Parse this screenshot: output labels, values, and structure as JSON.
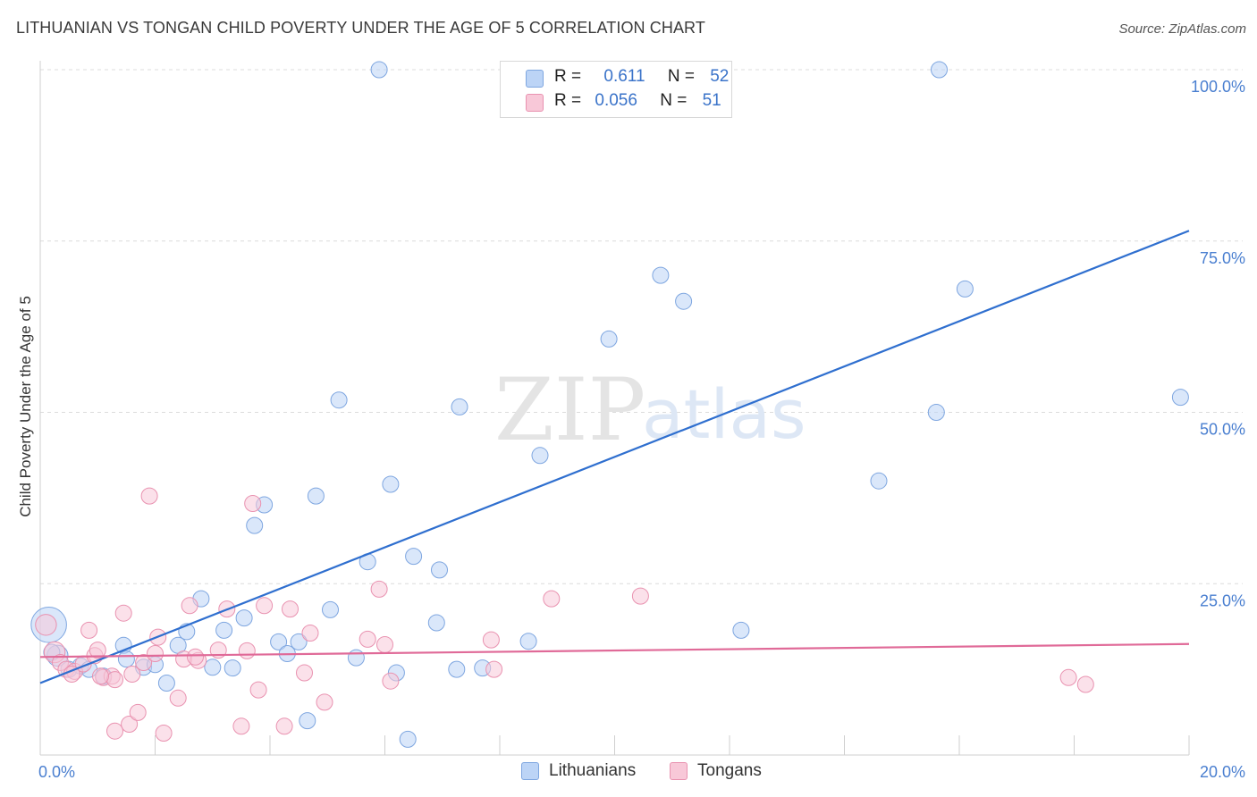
{
  "title": "LITHUANIAN VS TONGAN CHILD POVERTY UNDER THE AGE OF 5 CORRELATION CHART",
  "source": "Source: ZipAtlas.com",
  "watermark": {
    "zip": "ZIP",
    "atlas": "atlas"
  },
  "legend": {
    "rows": [
      {
        "r_label": "R =",
        "r_value": "0.611",
        "n_label": "N =",
        "n_value": "52",
        "color": "#bcd4f6",
        "border": "#7ea6e0"
      },
      {
        "r_label": "R =",
        "r_value": "0.056",
        "n_label": "N =",
        "n_value": "51",
        "color": "#f8c8d8",
        "border": "#e992b0"
      }
    ]
  },
  "bottom_legend": [
    {
      "label": "Lithuanians",
      "color": "#bcd4f6",
      "border": "#7ea6e0"
    },
    {
      "label": "Tongans",
      "color": "#f8c8d8",
      "border": "#e992b0"
    }
  ],
  "chart_data": {
    "type": "scatter",
    "ylabel": "Child Poverty Under the Age of 5",
    "xlim": [
      0,
      20
    ],
    "ylim": [
      0,
      100
    ],
    "x_tick_labels": [
      "0.0%",
      "20.0%"
    ],
    "y_ticks": [
      25,
      50,
      75,
      100
    ],
    "y_tick_labels": [
      "25.0%",
      "50.0%",
      "75.0%",
      "100.0%"
    ],
    "grid": true,
    "series": [
      {
        "name": "Lithuanians",
        "fill": "rgba(188,212,246,0.55)",
        "stroke": "#7ea6e0",
        "line_color": "#2f6fcf",
        "trend": [
          [
            0,
            10.5
          ],
          [
            20,
            76.5
          ]
        ],
        "points": [
          [
            0.15,
            19,
            2.2
          ],
          [
            0.3,
            14.5,
            1.3
          ],
          [
            0.5,
            12.5,
            1
          ],
          [
            0.7,
            13,
            1
          ],
          [
            0.85,
            12.5,
            1
          ],
          [
            1.1,
            11.5,
            1
          ],
          [
            1.45,
            16,
            1
          ],
          [
            1.5,
            14,
            1
          ],
          [
            1.8,
            12.8,
            1
          ],
          [
            2.0,
            13.2,
            1
          ],
          [
            2.2,
            10.5,
            1
          ],
          [
            2.4,
            16,
            1
          ],
          [
            2.55,
            18,
            1
          ],
          [
            2.8,
            22.8,
            1
          ],
          [
            3.0,
            12.8,
            1
          ],
          [
            3.2,
            18.2,
            1
          ],
          [
            3.35,
            12.7,
            1
          ],
          [
            3.55,
            20,
            1
          ],
          [
            3.73,
            33.5,
            1
          ],
          [
            3.9,
            36.5,
            1
          ],
          [
            4.15,
            16.5,
            1
          ],
          [
            4.3,
            14.8,
            1
          ],
          [
            4.5,
            16.5,
            1
          ],
          [
            4.65,
            5,
            1
          ],
          [
            4.8,
            37.8,
            1
          ],
          [
            5.05,
            21.2,
            1
          ],
          [
            5.2,
            51.8,
            1
          ],
          [
            5.5,
            14.2,
            1
          ],
          [
            5.7,
            28.2,
            1
          ],
          [
            5.9,
            100,
            1
          ],
          [
            6.1,
            39.5,
            1
          ],
          [
            6.2,
            12,
            1
          ],
          [
            6.4,
            2.3,
            1
          ],
          [
            6.5,
            29,
            1
          ],
          [
            6.9,
            19.3,
            1
          ],
          [
            6.95,
            27,
            1
          ],
          [
            7.3,
            50.8,
            1
          ],
          [
            7.25,
            12.5,
            1
          ],
          [
            7.7,
            12.7,
            1
          ],
          [
            8.2,
            100,
            1
          ],
          [
            8.5,
            16.6,
            1
          ],
          [
            8.7,
            43.7,
            1
          ],
          [
            9.9,
            60.7,
            1
          ],
          [
            10.8,
            70,
            1
          ],
          [
            11.2,
            66.2,
            1
          ],
          [
            12.2,
            18.2,
            1
          ],
          [
            14.6,
            40,
            1
          ],
          [
            15.6,
            50,
            1
          ],
          [
            15.65,
            100,
            1
          ],
          [
            16.1,
            68,
            1
          ],
          [
            19.85,
            52.2,
            1
          ],
          [
            0.2,
            15,
            1
          ]
        ]
      },
      {
        "name": "Tongans",
        "fill": "rgba(248,200,216,0.55)",
        "stroke": "#e992b0",
        "line_color": "#e06a98",
        "trend": [
          [
            0,
            14.3
          ],
          [
            20,
            16.2
          ]
        ],
        "points": [
          [
            0.1,
            19,
            1.3
          ],
          [
            0.25,
            15,
            1.3
          ],
          [
            0.35,
            13.5,
            1
          ],
          [
            0.45,
            12.5,
            1
          ],
          [
            0.6,
            12.2,
            1
          ],
          [
            0.75,
            13.3,
            1
          ],
          [
            0.85,
            18.2,
            1
          ],
          [
            0.95,
            14.5,
            1
          ],
          [
            1.0,
            15.3,
            1
          ],
          [
            1.1,
            11.3,
            1
          ],
          [
            1.25,
            11.5,
            1
          ],
          [
            1.3,
            11,
            1
          ],
          [
            1.3,
            3.5,
            1
          ],
          [
            1.45,
            20.7,
            1
          ],
          [
            1.55,
            4.5,
            1
          ],
          [
            1.6,
            11.8,
            1
          ],
          [
            1.7,
            6.2,
            1
          ],
          [
            1.8,
            13.5,
            1
          ],
          [
            1.9,
            37.8,
            1
          ],
          [
            2.0,
            14.8,
            1
          ],
          [
            2.05,
            17.2,
            1
          ],
          [
            2.15,
            3.2,
            1
          ],
          [
            2.4,
            8.3,
            1
          ],
          [
            2.5,
            14,
            1
          ],
          [
            2.6,
            21.8,
            1
          ],
          [
            2.75,
            13.8,
            1
          ],
          [
            3.1,
            15.3,
            1
          ],
          [
            3.25,
            21.3,
            1
          ],
          [
            3.5,
            4.2,
            1
          ],
          [
            3.7,
            36.7,
            1
          ],
          [
            3.8,
            9.5,
            1
          ],
          [
            3.9,
            21.8,
            1
          ],
          [
            4.25,
            4.2,
            1
          ],
          [
            4.35,
            21.3,
            1
          ],
          [
            4.6,
            12,
            1
          ],
          [
            4.7,
            17.8,
            1
          ],
          [
            4.95,
            7.7,
            1
          ],
          [
            5.7,
            16.9,
            1
          ],
          [
            5.9,
            24.2,
            1
          ],
          [
            6.0,
            16.1,
            1
          ],
          [
            6.1,
            10.8,
            1
          ],
          [
            7.85,
            16.8,
            1
          ],
          [
            7.9,
            12.5,
            1
          ],
          [
            8.9,
            22.8,
            1
          ],
          [
            10.45,
            23.2,
            1
          ],
          [
            17.9,
            11.3,
            1
          ],
          [
            18.2,
            10.3,
            1
          ],
          [
            0.55,
            11.8,
            1
          ],
          [
            1.05,
            11.5,
            1
          ],
          [
            2.7,
            14.3,
            1
          ],
          [
            3.6,
            15.2,
            1
          ]
        ]
      }
    ]
  }
}
